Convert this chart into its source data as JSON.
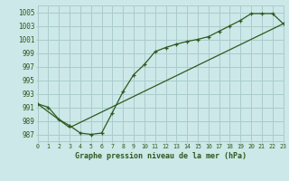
{
  "title": "Graphe pression niveau de la mer (hPa)",
  "bg_color": "#cce8e8",
  "grid_color": "#aacccc",
  "line_color": "#2d5a1e",
  "x_min": 0,
  "x_max": 23,
  "y_min": 986,
  "y_max": 1006,
  "ytick_step": 2,
  "x_labels": [
    "0",
    "1",
    "2",
    "3",
    "4",
    "5",
    "6",
    "7",
    "8",
    "9",
    "10",
    "11",
    "12",
    "13",
    "14",
    "15",
    "16",
    "17",
    "18",
    "19",
    "20",
    "21",
    "22",
    "23"
  ],
  "yticks": [
    987,
    989,
    991,
    993,
    995,
    997,
    999,
    1001,
    1003,
    1005
  ],
  "line1_x": [
    0,
    1,
    2,
    3,
    4,
    5,
    6,
    7,
    8,
    9,
    10,
    11,
    12,
    13,
    14,
    15,
    16,
    17,
    18,
    19,
    20,
    21,
    22,
    23
  ],
  "line1_y": [
    991.5,
    991.0,
    989.2,
    988.3,
    987.2,
    987.0,
    987.2,
    990.2,
    993.3,
    995.8,
    997.3,
    999.2,
    999.8,
    1000.3,
    1000.7,
    1001.0,
    1001.4,
    1002.2,
    1003.0,
    1003.8,
    1004.8,
    1004.8,
    1004.8,
    1003.3
  ],
  "line2_x": [
    0,
    3,
    23
  ],
  "line2_y": [
    991.5,
    988.0,
    1003.3
  ]
}
